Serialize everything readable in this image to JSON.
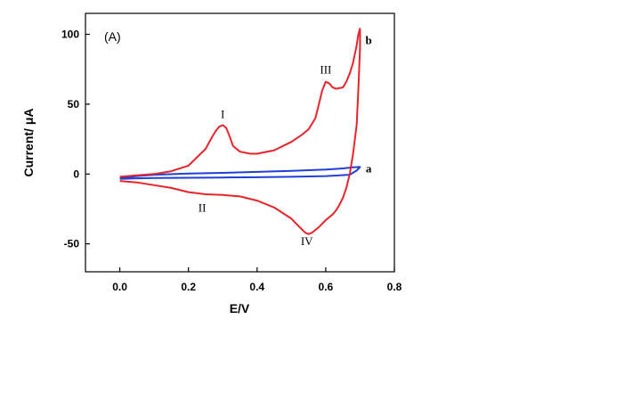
{
  "chart_data": {
    "type": "line",
    "panel_label": "(A)",
    "xlabel": "E/V",
    "ylabel": "Current/ μA",
    "xlim": [
      -0.1,
      0.8
    ],
    "ylim": [
      -70,
      115
    ],
    "x_ticks": [
      0.0,
      0.2,
      0.4,
      0.6,
      0.8
    ],
    "x_tick_labels": [
      "0.0",
      "0.2",
      "0.4",
      "0.6",
      "0.8"
    ],
    "y_ticks": [
      -50,
      0,
      50,
      100
    ],
    "y_tick_labels": [
      "-50",
      "0",
      "50",
      "100"
    ],
    "grid": false,
    "series": [
      {
        "name": "a",
        "color": "#1f3fd6",
        "x": [
          0.0,
          0.05,
          0.1,
          0.2,
          0.3,
          0.4,
          0.5,
          0.6,
          0.65,
          0.68,
          0.7,
          0.69,
          0.67,
          0.6,
          0.5,
          0.4,
          0.3,
          0.2,
          0.1,
          0.05,
          0.0
        ],
        "y": [
          -3,
          -1.5,
          -0.5,
          0.3,
          0.8,
          1.5,
          2.2,
          3.2,
          4.0,
          4.8,
          5.0,
          2.5,
          -0.5,
          -1.5,
          -2,
          -2.3,
          -2.5,
          -2.7,
          -2.9,
          -3.1,
          -3.5
        ]
      },
      {
        "name": "b",
        "color": "#e8242b",
        "x": [
          0.0,
          0.05,
          0.1,
          0.15,
          0.2,
          0.25,
          0.27,
          0.28,
          0.29,
          0.3,
          0.31,
          0.32,
          0.33,
          0.35,
          0.38,
          0.4,
          0.45,
          0.5,
          0.53,
          0.55,
          0.57,
          0.58,
          0.59,
          0.6,
          0.61,
          0.62,
          0.63,
          0.65,
          0.66,
          0.67,
          0.68,
          0.69,
          0.695,
          0.7,
          0.7,
          0.695,
          0.69,
          0.68,
          0.67,
          0.66,
          0.65,
          0.64,
          0.63,
          0.62,
          0.6,
          0.58,
          0.56,
          0.55,
          0.54,
          0.52,
          0.5,
          0.45,
          0.4,
          0.35,
          0.3,
          0.25,
          0.2,
          0.15,
          0.1,
          0.05,
          0.0
        ],
        "y": [
          -2,
          -1,
          0,
          2,
          6,
          18,
          27,
          31,
          34,
          35,
          33,
          27,
          20,
          16,
          14.5,
          14.5,
          17,
          23,
          28,
          32,
          40,
          50,
          60,
          66,
          65,
          62,
          61,
          62,
          66,
          72,
          80,
          92,
          100,
          104,
          90,
          60,
          35,
          15,
          0,
          -10,
          -17,
          -22,
          -26,
          -29,
          -33,
          -38,
          -42,
          -43,
          -42,
          -37,
          -32,
          -24,
          -19,
          -16,
          -15,
          -14.5,
          -13,
          -10,
          -8,
          -6,
          -5
        ]
      }
    ],
    "annotations": [
      {
        "text": "I",
        "x": 0.3,
        "y": 40
      },
      {
        "text": "II",
        "x": 0.24,
        "y": -27
      },
      {
        "text": "III",
        "x": 0.6,
        "y": 72
      },
      {
        "text": "IV",
        "x": 0.545,
        "y": -51
      },
      {
        "text": "b",
        "x": 0.725,
        "y": 93
      },
      {
        "text": "a",
        "x": 0.725,
        "y": 1
      }
    ]
  }
}
